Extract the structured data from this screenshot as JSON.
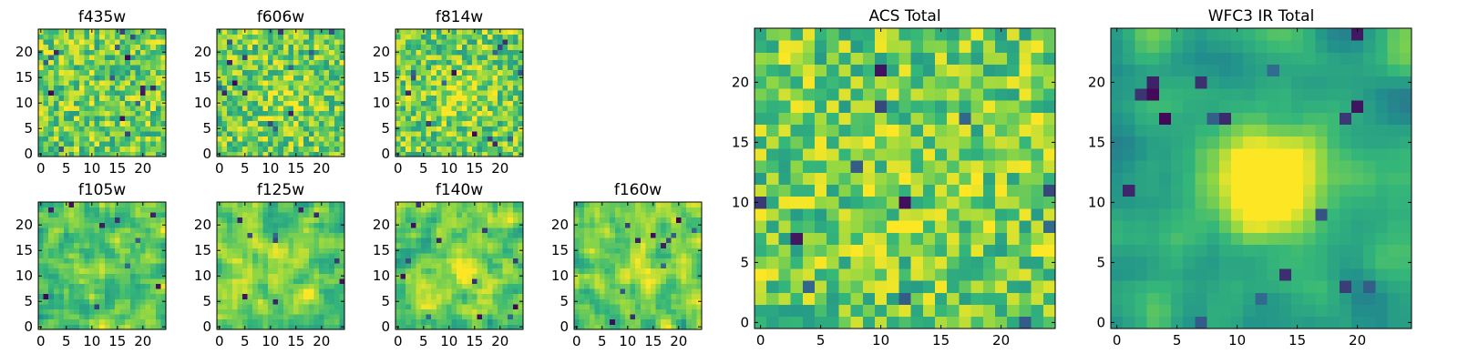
{
  "figure": {
    "colormap": [
      "#440154",
      "#31688e",
      "#21918c",
      "#35b779",
      "#90d743",
      "#fde725"
    ],
    "axis_color": "#000000"
  },
  "chart_data": [
    {
      "type": "heatmap",
      "id": "f435w",
      "title": "f435w",
      "grid": [
        25,
        25
      ],
      "xlim": [
        0,
        25
      ],
      "ylim": [
        0,
        25
      ],
      "xticks": [
        0,
        5,
        10,
        15,
        20
      ],
      "yticks": [
        0,
        5,
        10,
        15,
        20
      ],
      "seed": 11,
      "pattern": "noise",
      "smooth": 0,
      "center_peak": 0,
      "dark_spots": 16
    },
    {
      "type": "heatmap",
      "id": "f606w",
      "title": "f606w",
      "grid": [
        25,
        25
      ],
      "xlim": [
        0,
        25
      ],
      "ylim": [
        0,
        25
      ],
      "xticks": [
        0,
        5,
        10,
        15,
        20
      ],
      "yticks": [
        0,
        5,
        10,
        15,
        20
      ],
      "seed": 23,
      "pattern": "noise",
      "smooth": 0,
      "center_peak": 0.15,
      "dark_spots": 14
    },
    {
      "type": "heatmap",
      "id": "f814w",
      "title": "f814w",
      "grid": [
        25,
        25
      ],
      "xlim": [
        0,
        25
      ],
      "ylim": [
        0,
        25
      ],
      "xticks": [
        0,
        5,
        10,
        15,
        20
      ],
      "yticks": [
        0,
        5,
        10,
        15,
        20
      ],
      "seed": 37,
      "pattern": "noise",
      "smooth": 0,
      "center_peak": 0.2,
      "dark_spots": 14
    },
    {
      "type": "heatmap",
      "id": "f105w",
      "title": "f105w",
      "grid": [
        25,
        25
      ],
      "xlim": [
        0,
        25
      ],
      "ylim": [
        0,
        25
      ],
      "xticks": [
        0,
        5,
        10,
        15,
        20
      ],
      "yticks": [
        0,
        5,
        10,
        15,
        20
      ],
      "seed": 41,
      "pattern": "blobs",
      "smooth": 1,
      "center_peak": 0.1,
      "dark_spots": 10
    },
    {
      "type": "heatmap",
      "id": "f125w",
      "title": "f125w",
      "grid": [
        25,
        25
      ],
      "xlim": [
        0,
        25
      ],
      "ylim": [
        0,
        25
      ],
      "xticks": [
        0,
        5,
        10,
        15,
        20
      ],
      "yticks": [
        0,
        5,
        10,
        15,
        20
      ],
      "seed": 53,
      "pattern": "blobs",
      "smooth": 1,
      "center_peak": 0.1,
      "dark_spots": 10
    },
    {
      "type": "heatmap",
      "id": "f140w",
      "title": "f140w",
      "grid": [
        25,
        25
      ],
      "xlim": [
        0,
        25
      ],
      "ylim": [
        0,
        25
      ],
      "xticks": [
        0,
        5,
        10,
        15,
        20
      ],
      "yticks": [
        0,
        5,
        10,
        15,
        20
      ],
      "seed": 67,
      "pattern": "blobs",
      "smooth": 1,
      "center_peak": 0.2,
      "dark_spots": 12
    },
    {
      "type": "heatmap",
      "id": "f160w",
      "title": "f160w",
      "grid": [
        25,
        25
      ],
      "xlim": [
        0,
        25
      ],
      "ylim": [
        0,
        25
      ],
      "xticks": [
        0,
        5,
        10,
        15,
        20
      ],
      "yticks": [
        0,
        5,
        10,
        15,
        20
      ],
      "seed": 79,
      "pattern": "blobs",
      "smooth": 1,
      "center_peak": 0.2,
      "dark_spots": 12
    },
    {
      "type": "heatmap",
      "id": "acs-total",
      "title": "ACS Total",
      "grid": [
        25,
        25
      ],
      "xlim": [
        0,
        25
      ],
      "ylim": [
        0,
        25
      ],
      "xticks": [
        0,
        5,
        10,
        15,
        20
      ],
      "yticks": [
        0,
        5,
        10,
        15,
        20
      ],
      "seed": 97,
      "pattern": "noise",
      "smooth": 0,
      "center_peak": 0.05,
      "dark_spots": 12
    },
    {
      "type": "heatmap",
      "id": "wfc3-ir-total",
      "title": "WFC3 IR Total",
      "grid": [
        25,
        25
      ],
      "xlim": [
        0,
        25
      ],
      "ylim": [
        0,
        25
      ],
      "xticks": [
        0,
        5,
        10,
        15,
        20
      ],
      "yticks": [
        0,
        5,
        10,
        15,
        20
      ],
      "seed": 113,
      "pattern": "smooth",
      "smooth": 2,
      "center_peak": 0.75,
      "dark_spots": 18
    }
  ]
}
